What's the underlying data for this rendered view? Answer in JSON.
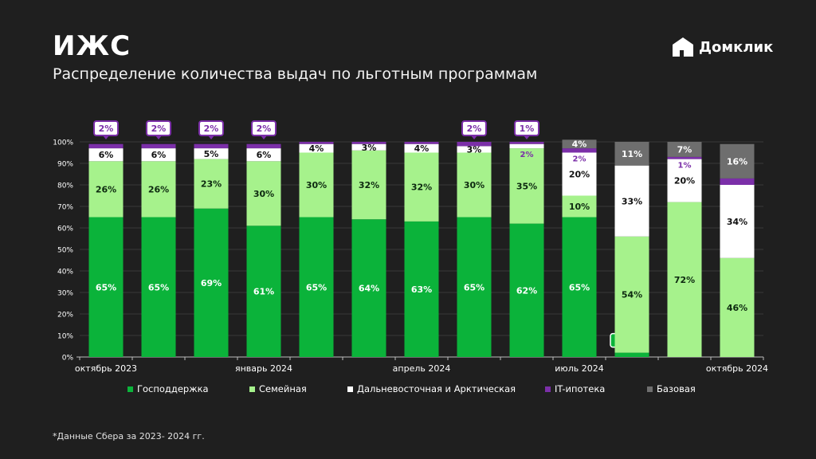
{
  "header": {
    "title": "ИЖС",
    "subtitle": "Распределение количества выдач по льготным программам",
    "logo_text": "Домклик"
  },
  "footnote": "*Данные Сбера за 2023- 2024 гг.",
  "colors": {
    "gov": "#0bb33a",
    "family": "#a6f28c",
    "fareast": "#ffffff",
    "it": "#7b2fa8",
    "base": "#6e6e6e",
    "background": "#1f1f1f"
  },
  "chart_data": {
    "type": "bar",
    "stacked": true,
    "ylim": [
      0,
      100
    ],
    "yticks": [
      "0%",
      "10%",
      "20%",
      "30%",
      "40%",
      "50%",
      "60%",
      "70%",
      "80%",
      "90%",
      "100%"
    ],
    "xtick_labels": [
      {
        "index": 0,
        "label": "октябрь 2023"
      },
      {
        "index": 3,
        "label": "январь 2024"
      },
      {
        "index": 6,
        "label": "апрель 2024"
      },
      {
        "index": 9,
        "label": "июль 2024"
      },
      {
        "index": 12,
        "label": "октябрь 2024"
      }
    ],
    "series": [
      {
        "name": "Господдержка",
        "color_key": "gov",
        "values": [
          65,
          65,
          69,
          61,
          65,
          64,
          63,
          65,
          62,
          65,
          2,
          0,
          0
        ],
        "labels": [
          "65%",
          "65%",
          "69%",
          "61%",
          "65%",
          "64%",
          "63%",
          "65%",
          "62%",
          "65%",
          "2%",
          "",
          ""
        ]
      },
      {
        "name": "Семейная",
        "color_key": "family",
        "values": [
          26,
          26,
          23,
          30,
          30,
          32,
          32,
          30,
          35,
          10,
          54,
          72,
          46
        ],
        "labels": [
          "26%",
          "26%",
          "23%",
          "30%",
          "30%",
          "32%",
          "32%",
          "30%",
          "35%",
          "10%",
          "54%",
          "72%",
          "46%"
        ]
      },
      {
        "name": "Дальневосточная и Арктическая",
        "color_key": "fareast",
        "values": [
          6,
          6,
          5,
          6,
          4,
          3,
          4,
          3,
          2,
          20,
          33,
          20,
          34
        ],
        "labels": [
          "6%",
          "6%",
          "5%",
          "6%",
          "4%",
          "3%",
          "4%",
          "3%",
          "2%",
          "20%",
          "33%",
          "20%",
          "34%"
        ]
      },
      {
        "name": "IT-ипотека",
        "color_key": "it",
        "values": [
          2,
          2,
          2,
          2,
          1,
          1,
          1,
          2,
          1,
          2,
          0,
          1,
          3
        ],
        "labels": [
          "2%",
          "2%",
          "2%",
          "2%",
          "",
          "",
          "",
          "2%",
          "1%",
          "2%",
          "",
          "1%",
          "3%"
        ]
      },
      {
        "name": "Базовая",
        "color_key": "base",
        "values": [
          0,
          0,
          0,
          0,
          0,
          0,
          0,
          0,
          0,
          4,
          11,
          7,
          16
        ],
        "labels": [
          "",
          "",
          "",
          "",
          "",
          "",
          "",
          "",
          "",
          "4%",
          "11%",
          "7%",
          "16%"
        ]
      }
    ]
  }
}
